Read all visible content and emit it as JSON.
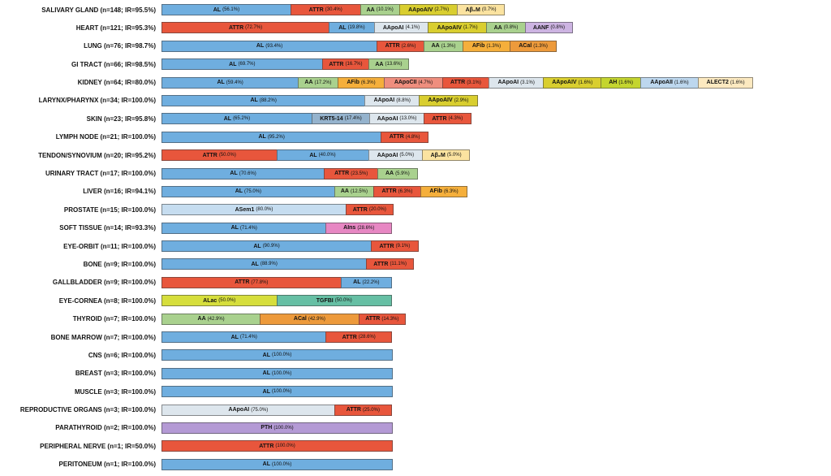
{
  "chart_data": {
    "type": "bar",
    "subtype": "horizontal-stacked",
    "unit": "%",
    "title": "",
    "xlabel": "",
    "ylabel": "",
    "legend": "none",
    "grid": false,
    "value_format": "PROTEIN (pct%)",
    "colors": {
      "AL": "#6FAEDF",
      "ATTR": "#E8563C",
      "AA": "#A9D18E",
      "AApoAIV": "#D9CE2F",
      "Aβ₂M": "#FBE3A0",
      "AApoAI": "#DDE6ED",
      "AANF": "#CDB4E2",
      "AFib": "#F5AF3B",
      "ACal": "#ED9A3B",
      "AApoCII": "#EF8E7E",
      "AH": "#C4D52F",
      "AApoAII": "#BDD7EE",
      "ALECT2": "#FCE9C0",
      "KRT5-14": "#95B3CD",
      "ASem1": "#C6DDF0",
      "AIns": "#E787C3",
      "ALac": "#D6DE3C",
      "TGFBI": "#66BFA4",
      "PTH": "#B49AD5"
    },
    "rows": [
      {
        "organ": "SALIVARY GLAND",
        "n": 148,
        "ir": "95.5%",
        "label": "SALIVARY GLAND (n=148; IR=95.5%)",
        "segments": [
          {
            "protein": "AL",
            "pct": 56.1
          },
          {
            "protein": "ATTR",
            "pct": 30.4
          },
          {
            "protein": "AA",
            "pct": 10.1
          },
          {
            "protein": "AApoAIV",
            "pct": 2.7
          },
          {
            "protein": "Aβ₂M",
            "pct": 0.7
          }
        ]
      },
      {
        "organ": "HEART",
        "n": 121,
        "ir": "95.3%",
        "label": "HEART (n=121; IR=95.3%)",
        "segments": [
          {
            "protein": "ATTR",
            "pct": 72.7
          },
          {
            "protein": "AL",
            "pct": 19.8
          },
          {
            "protein": "AApoAI",
            "pct": 4.1
          },
          {
            "protein": "AApoAIV",
            "pct": 1.7
          },
          {
            "protein": "AA",
            "pct": 0.8
          },
          {
            "protein": "AANF",
            "pct": 0.8
          }
        ]
      },
      {
        "organ": "LUNG",
        "n": 76,
        "ir": "98.7%",
        "label": "LUNG (n=76; IR=98.7%)",
        "segments": [
          {
            "protein": "AL",
            "pct": 93.4
          },
          {
            "protein": "ATTR",
            "pct": 2.6
          },
          {
            "protein": "AA",
            "pct": 1.3
          },
          {
            "protein": "AFib",
            "pct": 1.3
          },
          {
            "protein": "ACal",
            "pct": 1.3
          }
        ]
      },
      {
        "organ": "GI TRACT",
        "n": 66,
        "ir": "98.5%",
        "label": "GI TRACT (n=66; IR=98.5%)",
        "segments": [
          {
            "protein": "AL",
            "pct": 69.7
          },
          {
            "protein": "ATTR",
            "pct": 16.7
          },
          {
            "protein": "AA",
            "pct": 13.6
          }
        ]
      },
      {
        "organ": "KIDNEY",
        "n": 64,
        "ir": "80.0%",
        "label": "KIDNEY (n=64; IR=80.0%)",
        "segments": [
          {
            "protein": "AL",
            "pct": 59.4
          },
          {
            "protein": "AA",
            "pct": 17.2
          },
          {
            "protein": "AFib",
            "pct": 6.3
          },
          {
            "protein": "AApoCII",
            "pct": 4.7
          },
          {
            "protein": "ATTR",
            "pct": 3.1
          },
          {
            "protein": "AApoAI",
            "pct": 3.1
          },
          {
            "protein": "AApoAIV",
            "pct": 1.6
          },
          {
            "protein": "AH",
            "pct": 1.6
          },
          {
            "protein": "AApoAII",
            "pct": 1.6
          },
          {
            "protein": "ALECT2",
            "pct": 1.6
          }
        ]
      },
      {
        "organ": "LARYNX/PHARYNX",
        "n": 34,
        "ir": "100.0%",
        "label": "LARYNX/PHARYNX (n=34; IR=100.0%)",
        "segments": [
          {
            "protein": "AL",
            "pct": 88.2
          },
          {
            "protein": "AApoAI",
            "pct": 8.8
          },
          {
            "protein": "AApoAIV",
            "pct": 2.9
          }
        ]
      },
      {
        "organ": "SKIN",
        "n": 23,
        "ir": "95.8%",
        "label": "SKIN (n=23; IR=95.8%)",
        "segments": [
          {
            "protein": "AL",
            "pct": 65.2
          },
          {
            "protein": "KRT5-14",
            "pct": 17.4
          },
          {
            "protein": "AApoAI",
            "pct": 13.0
          },
          {
            "protein": "ATTR",
            "pct": 4.3
          }
        ]
      },
      {
        "organ": "LYMPH NODE",
        "n": 21,
        "ir": "100.0%",
        "label": "LYMPH NODE (n=21; IR=100.0%)",
        "segments": [
          {
            "protein": "AL",
            "pct": 95.2
          },
          {
            "protein": "ATTR",
            "pct": 4.8
          }
        ]
      },
      {
        "organ": "TENDON/SYNOVIUM",
        "n": 20,
        "ir": "95.2%",
        "label": "TENDON/SYNOVIUM (n=20; IR=95.2%)",
        "segments": [
          {
            "protein": "ATTR",
            "pct": 50.0
          },
          {
            "protein": "AL",
            "pct": 40.0
          },
          {
            "protein": "AApoAI",
            "pct": 5.0
          },
          {
            "protein": "Aβ₂M",
            "pct": 5.0
          }
        ]
      },
      {
        "organ": "URINARY TRACT",
        "n": 17,
        "ir": "100.0%",
        "label": "URINARY TRACT (n=17; IR=100.0%)",
        "segments": [
          {
            "protein": "AL",
            "pct": 70.6
          },
          {
            "protein": "ATTR",
            "pct": 23.5
          },
          {
            "protein": "AA",
            "pct": 5.9
          }
        ]
      },
      {
        "organ": "LIVER",
        "n": 16,
        "ir": "94.1%",
        "label": "LIVER (n=16; IR=94.1%)",
        "segments": [
          {
            "protein": "AL",
            "pct": 75.0
          },
          {
            "protein": "AA",
            "pct": 12.5
          },
          {
            "protein": "ATTR",
            "pct": 6.3
          },
          {
            "protein": "AFib",
            "pct": 6.3
          }
        ]
      },
      {
        "organ": "PROSTATE",
        "n": 15,
        "ir": "100.0%",
        "label": "PROSTATE (n=15; IR=100.0%)",
        "segments": [
          {
            "protein": "ASem1",
            "pct": 80.0
          },
          {
            "protein": "ATTR",
            "pct": 20.0
          }
        ]
      },
      {
        "organ": "SOFT TISSUE",
        "n": 14,
        "ir": "93.3%",
        "label": "SOFT TISSUE (n=14; IR=93.3%)",
        "segments": [
          {
            "protein": "AL",
            "pct": 71.4
          },
          {
            "protein": "AIns",
            "pct": 28.6
          }
        ]
      },
      {
        "organ": "EYE-ORBIT",
        "n": 11,
        "ir": "100.0%",
        "label": "EYE-ORBIT (n=11; IR=100.0%)",
        "segments": [
          {
            "protein": "AL",
            "pct": 90.9
          },
          {
            "protein": "ATTR",
            "pct": 9.1
          }
        ]
      },
      {
        "organ": "BONE",
        "n": 9,
        "ir": "100.0%",
        "label": "BONE (n=9; IR=100.0%)",
        "segments": [
          {
            "protein": "AL",
            "pct": 88.9
          },
          {
            "protein": "ATTR",
            "pct": 11.1
          }
        ]
      },
      {
        "organ": "GALLBLADDER",
        "n": 9,
        "ir": "100.0%",
        "label": "GALLBLADDER (n=9; IR=100.0%)",
        "segments": [
          {
            "protein": "ATTR",
            "pct": 77.8
          },
          {
            "protein": "AL",
            "pct": 22.2
          }
        ]
      },
      {
        "organ": "EYE-CORNEA",
        "n": 8,
        "ir": "100.0%",
        "label": "EYE-CORNEA (n=8; IR=100.0%)",
        "segments": [
          {
            "protein": "ALac",
            "pct": 50.0
          },
          {
            "protein": "TGFBI",
            "pct": 50.0
          }
        ]
      },
      {
        "organ": "THYROID",
        "n": 7,
        "ir": "100.0%",
        "label": "THYROID (n=7; IR=100.0%)",
        "segments": [
          {
            "protein": "AA",
            "pct": 42.9
          },
          {
            "protein": "ACal",
            "pct": 42.9
          },
          {
            "protein": "ATTR",
            "pct": 14.3
          }
        ]
      },
      {
        "organ": "BONE MARROW",
        "n": 7,
        "ir": "100.0%",
        "label": "BONE MARROW (n=7; IR=100.0%)",
        "segments": [
          {
            "protein": "AL",
            "pct": 71.4
          },
          {
            "protein": "ATTR",
            "pct": 28.6
          }
        ]
      },
      {
        "organ": "CNS",
        "n": 6,
        "ir": "100.0%",
        "label": "CNS (n=6; IR=100.0%)",
        "segments": [
          {
            "protein": "AL",
            "pct": 100.0
          }
        ]
      },
      {
        "organ": "BREAST",
        "n": 3,
        "ir": "100.0%",
        "label": "BREAST (n=3; IR=100.0%)",
        "segments": [
          {
            "protein": "AL",
            "pct": 100.0
          }
        ]
      },
      {
        "organ": "MUSCLE",
        "n": 3,
        "ir": "100.0%",
        "label": "MUSCLE (n=3; IR=100.0%)",
        "segments": [
          {
            "protein": "AL",
            "pct": 100.0
          }
        ]
      },
      {
        "organ": "REPRODUCTIVE ORGANS",
        "n": 3,
        "ir": "100.0%",
        "label": "REPRODUCTIVE ORGANS (n=3; IR=100.0%)",
        "segments": [
          {
            "protein": "AApoAI",
            "pct": 75.0
          },
          {
            "protein": "ATTR",
            "pct": 25.0
          }
        ]
      },
      {
        "organ": "PARATHYROID",
        "n": 2,
        "ir": "100.0%",
        "label": "PARATHYROID (n=2; IR=100.0%)",
        "segments": [
          {
            "protein": "PTH",
            "pct": 100.0
          }
        ]
      },
      {
        "organ": "PERIPHERAL NERVE",
        "n": 1,
        "ir": "50.0%",
        "label": "PERIPHERAL NERVE (n=1; IR=50.0%)",
        "segments": [
          {
            "protein": "ATTR",
            "pct": 100.0
          }
        ]
      },
      {
        "organ": "PERITONEUM",
        "n": 1,
        "ir": "100.0%",
        "label": "PERITONEUM (n=1; IR=100.0%)",
        "segments": [
          {
            "protein": "AL",
            "pct": 100.0
          }
        ]
      }
    ]
  }
}
